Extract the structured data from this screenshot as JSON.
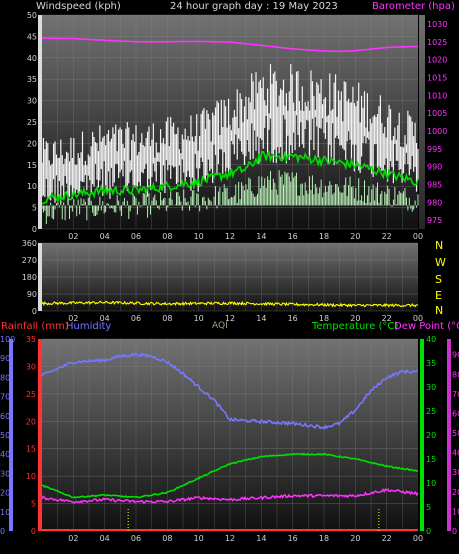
{
  "header": {
    "left_label": "Windspeed (kph)",
    "title": "24 hour graph day : 19 May 2023",
    "right_label": "Barometer (hpa)"
  },
  "bottom_header": {
    "rainfall_label": "Rainfall (mm)",
    "humidity_label": "Humidity",
    "aqi_label": "AQI",
    "temperature_label": "Temperature (°C)",
    "dewpoint_label": "Dew Point (°C)"
  },
  "compass": [
    "N",
    "W",
    "S",
    "E",
    "N"
  ],
  "colors": {
    "windspeed_label": "#d8d8d8",
    "barometer": "#ff33ff",
    "rainfall": "#ff3333",
    "humidity": "#7777ff",
    "aqi": "#a0a080",
    "temperature": "#00e000",
    "dewpoint": "#ff33ff",
    "winddir": "#ffff00",
    "compass": "#ffff00"
  },
  "chart_data": [
    {
      "type": "line",
      "x_ticks": [
        "02",
        "04",
        "06",
        "08",
        "10",
        "12",
        "14",
        "16",
        "18",
        "20",
        "22",
        "00"
      ],
      "xlim": [
        0,
        24
      ],
      "left_axis": {
        "label": "Windspeed (kph)",
        "ticks": [
          0,
          5,
          10,
          15,
          20,
          25,
          30,
          35,
          40,
          45,
          50
        ],
        "range": [
          0,
          50
        ]
      },
      "right_axis": {
        "label": "Barometer (hpa)",
        "ticks": [
          975,
          980,
          985,
          990,
          995,
          1000,
          1005,
          1010,
          1015,
          1020,
          1025,
          1030
        ],
        "range": [
          972.5,
          1032.5
        ]
      },
      "series": [
        {
          "name": "Barometer (hpa)",
          "axis": "right",
          "x": [
            0,
            2,
            4,
            6,
            8,
            10,
            12,
            14,
            16,
            18,
            19,
            20,
            22,
            24
          ],
          "values": [
            1026,
            1025.9,
            1025.4,
            1025.0,
            1025.0,
            1025.1,
            1024.9,
            1024.0,
            1023.0,
            1022.4,
            1022.3,
            1022.5,
            1023.4,
            1023.7
          ]
        },
        {
          "name": "Windspeed (kph)",
          "axis": "left",
          "x": [
            0,
            2,
            4,
            6,
            8,
            10,
            12,
            13,
            14,
            16,
            18,
            20,
            22,
            24
          ],
          "values": [
            7,
            8,
            9,
            9,
            10,
            11,
            13,
            14,
            17,
            17,
            16,
            15,
            13,
            11
          ]
        },
        {
          "name": "Wind gust (kph)",
          "axis": "left",
          "x": [
            0,
            2,
            4,
            6,
            8,
            10,
            12,
            13,
            14,
            16,
            18,
            20,
            22,
            24
          ],
          "values": [
            13,
            14,
            16,
            16,
            17,
            18,
            22,
            24,
            27,
            27,
            26,
            24,
            21,
            17
          ]
        }
      ]
    },
    {
      "type": "line",
      "x_ticks": [
        "02",
        "04",
        "06",
        "08",
        "10",
        "12",
        "14",
        "16",
        "18",
        "20",
        "22",
        "00"
      ],
      "xlim": [
        0,
        24
      ],
      "left_axis": {
        "ticks": [
          0,
          90,
          180,
          270,
          360
        ],
        "range": [
          0,
          360
        ]
      },
      "right_axis": {
        "ticks": [
          "N",
          "W",
          "S",
          "E",
          "N"
        ]
      },
      "series": [
        {
          "name": "Wind direction",
          "axis": "left",
          "x": [
            0,
            4,
            8,
            12,
            16,
            20,
            24
          ],
          "values": [
            40,
            45,
            38,
            42,
            35,
            30,
            30
          ]
        }
      ]
    },
    {
      "type": "line",
      "x_ticks": [
        "02",
        "04",
        "06",
        "08",
        "10",
        "12",
        "14",
        "16",
        "18",
        "20",
        "22",
        "00"
      ],
      "xlim": [
        0,
        24
      ],
      "humidity_axis": {
        "ticks": [
          0,
          10,
          20,
          30,
          40,
          50,
          60,
          70,
          80,
          90,
          100
        ],
        "range": [
          0,
          100
        ]
      },
      "rainfall_axis": {
        "label": "Rainfall (mm)",
        "ticks": [
          0,
          5,
          10,
          15,
          20,
          25,
          30,
          35
        ],
        "range": [
          0,
          35
        ]
      },
      "temperature_axis": {
        "label": "Temperature (°C)",
        "ticks": [
          0,
          5,
          10,
          15,
          20,
          25,
          30,
          35,
          40
        ],
        "range": [
          0,
          40
        ]
      },
      "dewpoint_axis": {
        "label": "Dew Point (°C)",
        "ticks": [
          0,
          10,
          20,
          30,
          40,
          50,
          60,
          70,
          80,
          90
        ],
        "range": [
          0,
          98
        ]
      },
      "series": [
        {
          "name": "Humidity",
          "axis": "humidity",
          "x": [
            0,
            2,
            4,
            5,
            6,
            7,
            8,
            9,
            10,
            11,
            12,
            14,
            16,
            18,
            19,
            20,
            21,
            22,
            23,
            24
          ],
          "values": [
            81,
            88,
            89,
            91,
            92,
            91,
            88,
            82,
            75,
            68,
            58,
            57,
            56,
            54,
            56,
            63,
            73,
            80,
            83,
            83
          ]
        },
        {
          "name": "Temperature (°C)",
          "axis": "temperature",
          "x": [
            0,
            2,
            4,
            6,
            8,
            10,
            12,
            14,
            16,
            18,
            20,
            22,
            24
          ],
          "values": [
            9.5,
            7,
            7.5,
            7,
            8,
            11,
            14,
            15.5,
            16,
            16,
            15,
            13.5,
            12.5
          ]
        },
        {
          "name": "Dew Point (°C)",
          "axis": "dewpoint",
          "x": [
            0,
            2,
            4,
            6,
            8,
            10,
            12,
            14,
            16,
            18,
            20,
            22,
            24
          ],
          "values": [
            17,
            15,
            16,
            15,
            15,
            17,
            16,
            17,
            18,
            18,
            18,
            21,
            19
          ]
        },
        {
          "name": "Rainfall (mm)",
          "axis": "rainfall",
          "x": [
            0,
            24
          ],
          "values": [
            0,
            0
          ]
        }
      ]
    }
  ]
}
